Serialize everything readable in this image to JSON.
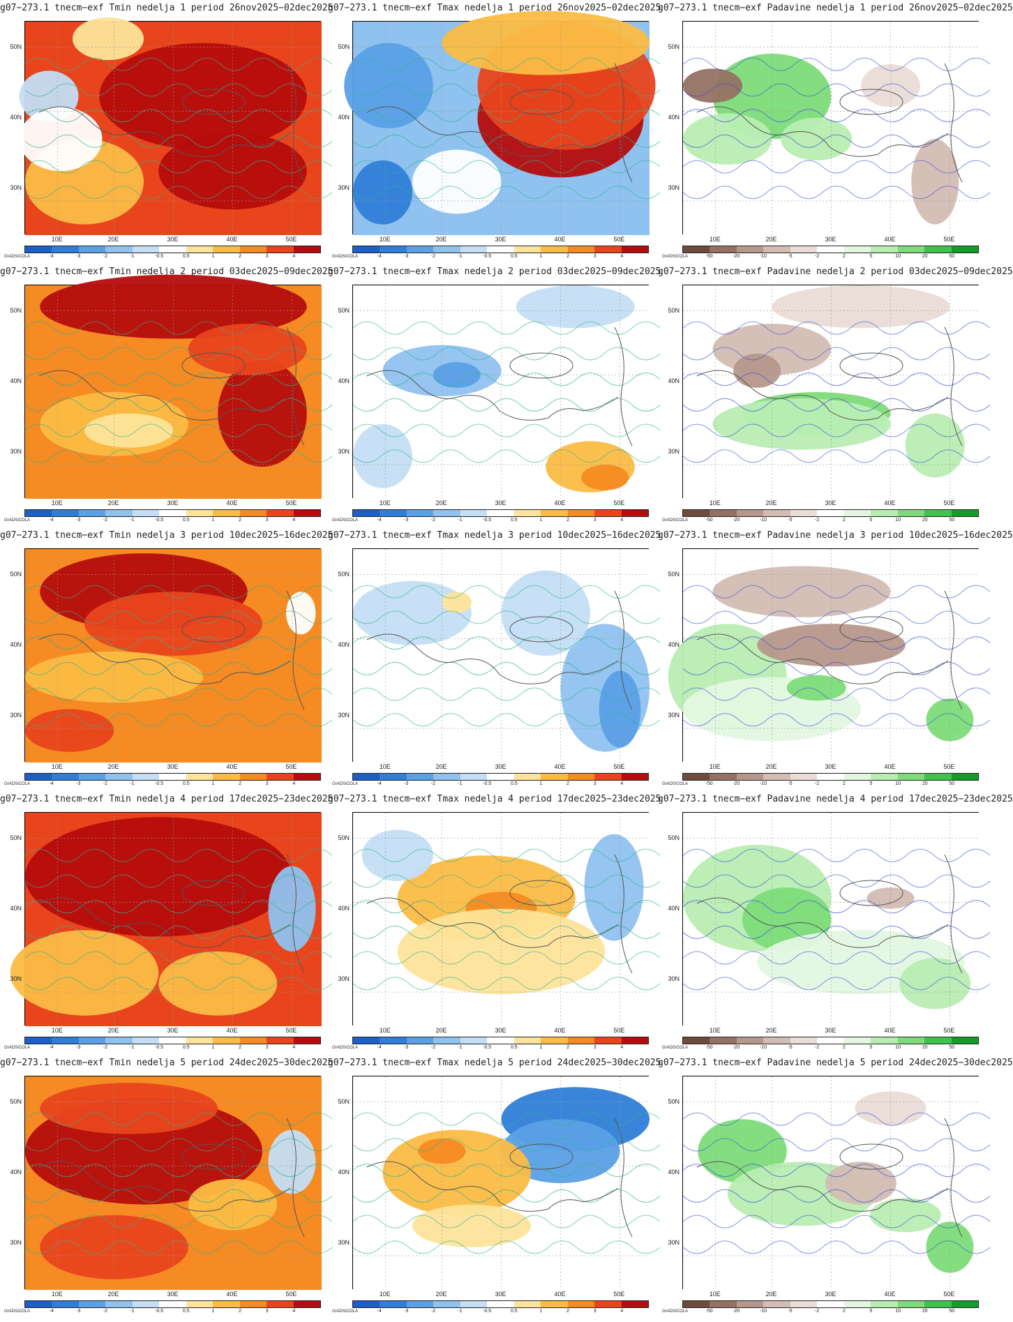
{
  "grads_label": "GrADS/COLA",
  "lat_labels": [
    "50N",
    "40N",
    "30N"
  ],
  "lon_labels": [
    "10E",
    "20E",
    "30E",
    "40E",
    "50E"
  ],
  "legends": {
    "temp": {
      "labels": [
        "-4",
        "-3",
        "-2",
        "-1",
        "-0.5",
        "0.5",
        "1",
        "2",
        "3",
        "4"
      ],
      "colors": [
        "#1c5fc8",
        "#2f7ed8",
        "#5aa0e6",
        "#8fc2ef",
        "#c4def6",
        "#ffffff",
        "#fde49a",
        "#fbbc45",
        "#f58b22",
        "#e8451c",
        "#b50d0d"
      ]
    },
    "precip": {
      "labels": [
        "-50",
        "-20",
        "-10",
        "-5",
        "-2",
        "2",
        "5",
        "10",
        "20",
        "50"
      ],
      "colors": [
        "#6e4b3c",
        "#957163",
        "#b6978b",
        "#d3bdb3",
        "#eadcd6",
        "#ffffff",
        "#e3f7e0",
        "#b8edb2",
        "#7ddc79",
        "#3fc34a",
        "#139c27"
      ]
    }
  },
  "rows": [
    {
      "week": "1",
      "period": "26nov2025−02dec2025",
      "titles": [
        "g07−273.1  tnecm−exf  Tmin  nedelja 1  period 26nov2025−02dec2025",
        "g07−273.1  tnecm−exf  Tmax  nedelja 1  period 26nov2025−02dec2025",
        "g07−273.1  tnecm−exf  Padavine  nedelja 1  period 26nov2025−02dec2025"
      ]
    },
    {
      "week": "2",
      "period": "03dec2025−09dec2025",
      "titles": [
        "g07−273.1  tnecm−exf  Tmin  nedelja 2  period 03dec2025−09dec2025",
        "g07−273.1  tnecm−exf  Tmax  nedelja 2  period 03dec2025−09dec2025",
        "g07−273.1  tnecm−exf  Padavine  nedelja 2  period 03dec2025−09dec2025"
      ]
    },
    {
      "week": "3",
      "period": "10dec2025−16dec2025",
      "titles": [
        "g07−273.1  tnecm−exf  Tmin  nedelja 3  period 10dec2025−16dec2025",
        "g07−273.1  tnecm−exf  Tmax  nedelja 3  period 10dec2025−16dec2025",
        "g07−273.1  tnecm−exf  Padavine  nedelja 3  period 10dec2025−16dec2025"
      ]
    },
    {
      "week": "4",
      "period": "17dec2025−23dec2025",
      "titles": [
        "g07−273.1  tnecm−exf  Tmin  nedelja 4  period 17dec2025−23dec2025",
        "g07−273.1  tnecm−exf  Tmax  nedelja 4  period 17dec2025−23dec2025",
        "g07−273.1  tnecm−exf  Padavine  nedelja 4  period 17dec2025−23dec2025"
      ]
    },
    {
      "week": "5",
      "period": "24dec2025−30dec2025",
      "titles": [
        "g07−273.1  tnecm−exf  Tmin  nedelja 5  period 24dec2025−30dec2025",
        "g07−273.1  tnecm−exf  Tmax  nedelja 5  period 24dec2025−30dec2025",
        "g07−273.1  tnecm−exf  Padavine  nedelja 5  period 24dec2025−30dec2025"
      ]
    }
  ],
  "maps": [
    [
      {
        "kind": "temp",
        "fill": "#e8451c",
        "blobs": [
          [
            "#b50d0d",
            0.6,
            0.35,
            0.35,
            0.25
          ],
          [
            "#b50d0d",
            0.7,
            0.7,
            0.25,
            0.18
          ],
          [
            "#fbbc45",
            0.2,
            0.75,
            0.2,
            0.2
          ],
          [
            "#c4def6",
            0.08,
            0.35,
            0.1,
            0.12
          ],
          [
            "#ffffff",
            0.12,
            0.55,
            0.14,
            0.15
          ],
          [
            "#fde49a",
            0.28,
            0.08,
            0.12,
            0.1
          ]
        ]
      },
      {
        "kind": "temp",
        "fill": "#8fc2ef",
        "blobs": [
          [
            "#b50d0d",
            0.7,
            0.45,
            0.28,
            0.28
          ],
          [
            "#e8451c",
            0.72,
            0.3,
            0.3,
            0.3
          ],
          [
            "#fbbc45",
            0.65,
            0.1,
            0.35,
            0.15
          ],
          [
            "#5aa0e6",
            0.12,
            0.3,
            0.15,
            0.2
          ],
          [
            "#2f7ed8",
            0.1,
            0.8,
            0.1,
            0.15
          ],
          [
            "#ffffff",
            0.35,
            0.75,
            0.15,
            0.15
          ]
        ]
      },
      {
        "kind": "precip",
        "fill": "#ffffff",
        "blobs": [
          [
            "#7ddc79",
            0.3,
            0.35,
            0.2,
            0.2
          ],
          [
            "#b8edb2",
            0.15,
            0.55,
            0.15,
            0.12
          ],
          [
            "#957163",
            0.1,
            0.3,
            0.1,
            0.08
          ],
          [
            "#d3bdb3",
            0.85,
            0.75,
            0.08,
            0.2
          ],
          [
            "#b8edb2",
            0.45,
            0.55,
            0.12,
            0.1
          ],
          [
            "#eadcd6",
            0.7,
            0.3,
            0.1,
            0.1
          ]
        ]
      }
    ],
    [
      {
        "kind": "temp",
        "fill": "#f58b22",
        "blobs": [
          [
            "#b50d0d",
            0.5,
            0.1,
            0.45,
            0.15
          ],
          [
            "#b50d0d",
            0.8,
            0.6,
            0.15,
            0.25
          ],
          [
            "#fbbc45",
            0.3,
            0.65,
            0.25,
            0.15
          ],
          [
            "#fde49a",
            0.35,
            0.68,
            0.15,
            0.08
          ],
          [
            "#e8451c",
            0.75,
            0.3,
            0.2,
            0.12
          ]
        ]
      },
      {
        "kind": "temp",
        "fill": "#ffffff",
        "blobs": [
          [
            "#8fc2ef",
            0.3,
            0.4,
            0.2,
            0.12
          ],
          [
            "#5aa0e6",
            0.35,
            0.42,
            0.08,
            0.06
          ],
          [
            "#c4def6",
            0.1,
            0.8,
            0.1,
            0.15
          ],
          [
            "#fbbc45",
            0.8,
            0.85,
            0.15,
            0.12
          ],
          [
            "#f58b22",
            0.85,
            0.9,
            0.08,
            0.06
          ],
          [
            "#c4def6",
            0.75,
            0.1,
            0.2,
            0.1
          ]
        ]
      },
      {
        "kind": "precip",
        "fill": "#ffffff",
        "blobs": [
          [
            "#7ddc79",
            0.45,
            0.6,
            0.25,
            0.1
          ],
          [
            "#b8edb2",
            0.4,
            0.65,
            0.3,
            0.12
          ],
          [
            "#d3bdb3",
            0.3,
            0.3,
            0.2,
            0.12
          ],
          [
            "#b6978b",
            0.25,
            0.4,
            0.08,
            0.08
          ],
          [
            "#eadcd6",
            0.6,
            0.1,
            0.3,
            0.1
          ],
          [
            "#b8edb2",
            0.85,
            0.75,
            0.1,
            0.15
          ]
        ]
      }
    ],
    [
      {
        "kind": "temp",
        "fill": "#f58b22",
        "blobs": [
          [
            "#b50d0d",
            0.4,
            0.2,
            0.35,
            0.18
          ],
          [
            "#e8451c",
            0.5,
            0.35,
            0.3,
            0.15
          ],
          [
            "#fbbc45",
            0.3,
            0.6,
            0.3,
            0.12
          ],
          [
            "#e8451c",
            0.15,
            0.85,
            0.15,
            0.1
          ],
          [
            "#ffffff",
            0.93,
            0.3,
            0.05,
            0.1
          ]
        ]
      },
      {
        "kind": "temp",
        "fill": "#ffffff",
        "blobs": [
          [
            "#c4def6",
            0.2,
            0.3,
            0.2,
            0.15
          ],
          [
            "#8fc2ef",
            0.85,
            0.65,
            0.15,
            0.3
          ],
          [
            "#5aa0e6",
            0.9,
            0.75,
            0.07,
            0.18
          ],
          [
            "#c4def6",
            0.65,
            0.3,
            0.15,
            0.2
          ],
          [
            "#fde49a",
            0.35,
            0.25,
            0.05,
            0.05
          ]
        ]
      },
      {
        "kind": "precip",
        "fill": "#ffffff",
        "blobs": [
          [
            "#b8edb2",
            0.15,
            0.6,
            0.2,
            0.25
          ],
          [
            "#e3f7e0",
            0.3,
            0.75,
            0.3,
            0.15
          ],
          [
            "#b6978b",
            0.5,
            0.45,
            0.25,
            0.1
          ],
          [
            "#d3bdb3",
            0.4,
            0.2,
            0.3,
            0.12
          ],
          [
            "#7ddc79",
            0.45,
            0.65,
            0.1,
            0.06
          ],
          [
            "#7ddc79",
            0.9,
            0.8,
            0.08,
            0.1
          ]
        ]
      }
    ],
    [
      {
        "kind": "temp",
        "fill": "#e8451c",
        "blobs": [
          [
            "#b50d0d",
            0.45,
            0.3,
            0.45,
            0.28
          ],
          [
            "#fbbc45",
            0.2,
            0.75,
            0.25,
            0.2
          ],
          [
            "#fbbc45",
            0.65,
            0.8,
            0.2,
            0.15
          ],
          [
            "#8fc2ef",
            0.9,
            0.45,
            0.08,
            0.2
          ]
        ]
      },
      {
        "kind": "temp",
        "fill": "#ffffff",
        "blobs": [
          [
            "#fbbc45",
            0.45,
            0.4,
            0.3,
            0.2
          ],
          [
            "#f58b22",
            0.5,
            0.45,
            0.12,
            0.08
          ],
          [
            "#fde49a",
            0.5,
            0.65,
            0.35,
            0.2
          ],
          [
            "#8fc2ef",
            0.88,
            0.35,
            0.1,
            0.25
          ],
          [
            "#c4def6",
            0.15,
            0.2,
            0.12,
            0.12
          ]
        ]
      },
      {
        "kind": "precip",
        "fill": "#ffffff",
        "blobs": [
          [
            "#b8edb2",
            0.25,
            0.4,
            0.25,
            0.25
          ],
          [
            "#7ddc79",
            0.35,
            0.5,
            0.15,
            0.15
          ],
          [
            "#e3f7e0",
            0.6,
            0.7,
            0.35,
            0.15
          ],
          [
            "#d3bdb3",
            0.7,
            0.4,
            0.08,
            0.05
          ],
          [
            "#b8edb2",
            0.85,
            0.8,
            0.12,
            0.12
          ]
        ]
      }
    ],
    [
      {
        "kind": "temp",
        "fill": "#f58b22",
        "blobs": [
          [
            "#b50d0d",
            0.4,
            0.35,
            0.4,
            0.25
          ],
          [
            "#e8451c",
            0.35,
            0.15,
            0.3,
            0.12
          ],
          [
            "#e8451c",
            0.3,
            0.8,
            0.25,
            0.15
          ],
          [
            "#c4def6",
            0.9,
            0.4,
            0.08,
            0.15
          ],
          [
            "#fbbc45",
            0.7,
            0.6,
            0.15,
            0.12
          ]
        ]
      },
      {
        "kind": "temp",
        "fill": "#ffffff",
        "blobs": [
          [
            "#2f7ed8",
            0.75,
            0.2,
            0.25,
            0.15
          ],
          [
            "#5aa0e6",
            0.7,
            0.35,
            0.2,
            0.15
          ],
          [
            "#fbbc45",
            0.35,
            0.45,
            0.25,
            0.2
          ],
          [
            "#f58b22",
            0.3,
            0.35,
            0.08,
            0.06
          ],
          [
            "#fde49a",
            0.4,
            0.7,
            0.2,
            0.1
          ]
        ]
      },
      {
        "kind": "precip",
        "fill": "#ffffff",
        "blobs": [
          [
            "#7ddc79",
            0.2,
            0.35,
            0.15,
            0.15
          ],
          [
            "#b8edb2",
            0.4,
            0.55,
            0.25,
            0.15
          ],
          [
            "#7ddc79",
            0.9,
            0.8,
            0.08,
            0.12
          ],
          [
            "#d3bdb3",
            0.6,
            0.5,
            0.12,
            0.1
          ],
          [
            "#eadcd6",
            0.7,
            0.15,
            0.12,
            0.08
          ],
          [
            "#b8edb2",
            0.75,
            0.65,
            0.12,
            0.08
          ]
        ]
      }
    ]
  ]
}
